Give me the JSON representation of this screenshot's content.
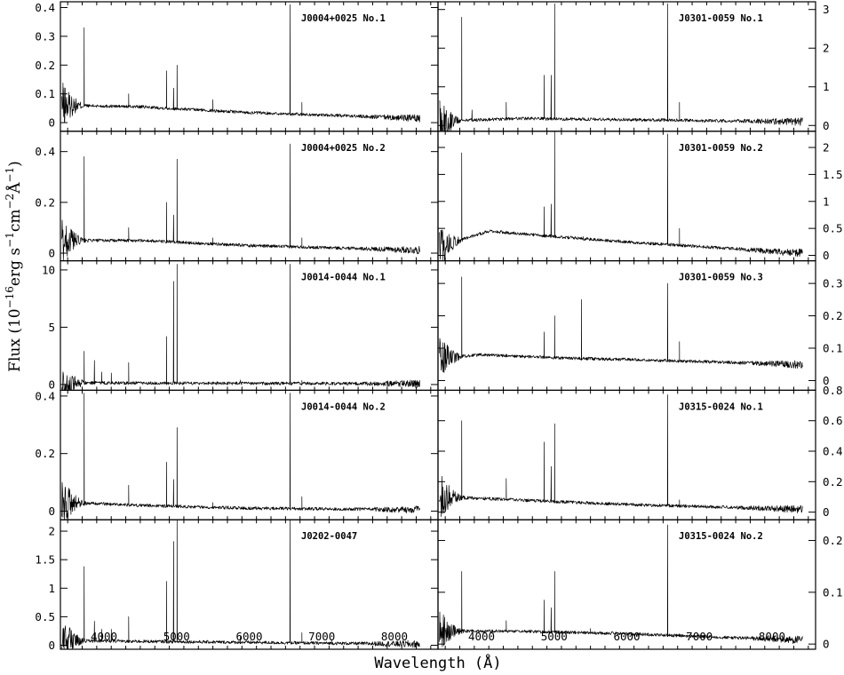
{
  "chart_data": {
    "type": "line",
    "xlabel": "Wavelength (Å)",
    "ylabel": "Flux (10^-16 erg s^-1 cm^-2 Å^-1)",
    "xlim": [
      3400,
      8600
    ],
    "x_ticks": [
      4000,
      5000,
      6000,
      7000,
      8000
    ],
    "layout": "5 rows x 2 columns; left column y-ticks on left, right column y-ticks on right",
    "panels": [
      {
        "label": "J0004+0025 No.1",
        "ylim": [
          -0.03,
          0.42
        ],
        "yticks": [
          0,
          0.1,
          0.2,
          0.3,
          0.4
        ],
        "ytick_labels": [
          "0",
          "0.1",
          "0.2",
          "0.3",
          "0.4"
        ],
        "continuum": [
          [
            3500,
            0.06
          ],
          [
            4500,
            0.055
          ],
          [
            6000,
            0.035
          ],
          [
            8300,
            0.015
          ]
        ],
        "lines": [
          [
            3727,
            0.33
          ],
          [
            4340,
            0.1
          ],
          [
            4861,
            0.18
          ],
          [
            4959,
            0.12
          ],
          [
            5007,
            0.2
          ],
          [
            5500,
            0.08
          ],
          [
            6563,
            0.41
          ],
          [
            6725,
            0.07
          ]
        ]
      },
      {
        "label": "J0004+0025 No.2",
        "ylim": [
          -0.03,
          0.48
        ],
        "yticks": [
          0,
          0.2,
          0.4
        ],
        "ytick_labels": [
          "0",
          "0.2",
          "0.4"
        ],
        "continuum": [
          [
            3500,
            0.05
          ],
          [
            4500,
            0.05
          ],
          [
            6000,
            0.03
          ],
          [
            8300,
            0.012
          ]
        ],
        "lines": [
          [
            3727,
            0.38
          ],
          [
            4340,
            0.1
          ],
          [
            4861,
            0.2
          ],
          [
            4959,
            0.15
          ],
          [
            5007,
            0.37
          ],
          [
            5500,
            0.06
          ],
          [
            6563,
            0.43
          ],
          [
            6725,
            0.06
          ]
        ]
      },
      {
        "label": "J0014-0044 No.1",
        "ylim": [
          -0.5,
          10.8
        ],
        "yticks": [
          0,
          5,
          10
        ],
        "ytick_labels": [
          "0",
          "5",
          "10"
        ],
        "continuum": [
          [
            3500,
            0.15
          ],
          [
            6000,
            0.1
          ],
          [
            8300,
            0.08
          ]
        ],
        "lines": [
          [
            3727,
            2.9
          ],
          [
            3869,
            2.1
          ],
          [
            3968,
            1.1
          ],
          [
            4101,
            1.0
          ],
          [
            4340,
            1.9
          ],
          [
            4861,
            4.2
          ],
          [
            4959,
            9.0
          ],
          [
            5007,
            10.5
          ],
          [
            5876,
            0.4
          ],
          [
            6563,
            10.5
          ],
          [
            6725,
            0.35
          ],
          [
            7135,
            0.2
          ]
        ]
      },
      {
        "label": "J0014-0044 No.2",
        "ylim": [
          -0.03,
          0.42
        ],
        "yticks": [
          0,
          0.2,
          0.4
        ],
        "ytick_labels": [
          "0",
          "0.2",
          "0.4"
        ],
        "continuum": [
          [
            3500,
            0.03
          ],
          [
            4500,
            0.02
          ],
          [
            6000,
            0.01
          ],
          [
            8300,
            0.005
          ]
        ],
        "lines": [
          [
            3727,
            0.41
          ],
          [
            4340,
            0.09
          ],
          [
            4861,
            0.17
          ],
          [
            4959,
            0.11
          ],
          [
            5007,
            0.29
          ],
          [
            5500,
            0.03
          ],
          [
            6563,
            0.41
          ],
          [
            6725,
            0.05
          ]
        ]
      },
      {
        "label": "J0202-0047",
        "ylim": [
          -0.07,
          2.2
        ],
        "yticks": [
          0,
          0.5,
          1,
          1.5,
          2
        ],
        "ytick_labels": [
          "0",
          "0.5",
          "1",
          "1.5",
          "2"
        ],
        "continuum": [
          [
            3500,
            0.08
          ],
          [
            6000,
            0.05
          ],
          [
            8300,
            0.02
          ]
        ],
        "lines": [
          [
            3727,
            1.38
          ],
          [
            3869,
            0.42
          ],
          [
            3968,
            0.28
          ],
          [
            4101,
            0.28
          ],
          [
            4340,
            0.5
          ],
          [
            4861,
            1.12
          ],
          [
            4959,
            1.82
          ],
          [
            5007,
            2.2
          ],
          [
            5876,
            0.15
          ],
          [
            6563,
            2.2
          ],
          [
            6725,
            0.22
          ],
          [
            7135,
            0.1
          ]
        ]
      },
      {
        "label": "J0301-0059 No.1",
        "ylim": [
          -0.15,
          3.2
        ],
        "yticks": [
          0,
          1,
          2,
          3
        ],
        "ytick_labels": [
          "0",
          "1",
          "2",
          "3"
        ],
        "continuum": [
          [
            3500,
            0.12
          ],
          [
            4500,
            0.18
          ],
          [
            6000,
            0.15
          ],
          [
            8300,
            0.1
          ]
        ],
        "lines": [
          [
            3727,
            2.8
          ],
          [
            3869,
            0.4
          ],
          [
            4340,
            0.6
          ],
          [
            4861,
            1.3
          ],
          [
            4959,
            1.3
          ],
          [
            5007,
            3.15
          ],
          [
            6563,
            3.15
          ],
          [
            6725,
            0.6
          ]
        ]
      },
      {
        "label": "J0301-0059 No.2",
        "ylim": [
          -0.1,
          2.3
        ],
        "yticks": [
          0,
          0.5,
          1,
          1.5,
          2
        ],
        "ytick_labels": [
          "0",
          "0.5",
          "1",
          "1.5",
          "2"
        ],
        "continuum": [
          [
            3500,
            0.2
          ],
          [
            4100,
            0.45
          ],
          [
            5000,
            0.35
          ],
          [
            6000,
            0.25
          ],
          [
            8300,
            0.05
          ]
        ],
        "lines": [
          [
            3727,
            1.9
          ],
          [
            4340,
            0.45
          ],
          [
            4861,
            0.9
          ],
          [
            4959,
            0.95
          ],
          [
            5007,
            2.3
          ],
          [
            5400,
            0.35
          ],
          [
            6563,
            2.25
          ],
          [
            6725,
            0.5
          ]
        ]
      },
      {
        "label": "J0301-0059 No.3",
        "ylim": [
          -0.03,
          0.37
        ],
        "yticks": [
          0,
          0.1,
          0.2,
          0.3
        ],
        "ytick_labels": [
          "0",
          "0.1",
          "0.2",
          "0.3"
        ],
        "continuum": [
          [
            3500,
            0.07
          ],
          [
            4000,
            0.08
          ],
          [
            5000,
            0.07
          ],
          [
            6000,
            0.065
          ],
          [
            8300,
            0.05
          ]
        ],
        "lines": [
          [
            3727,
            0.32
          ],
          [
            4861,
            0.15
          ],
          [
            5007,
            0.2
          ],
          [
            5376,
            0.25
          ],
          [
            6563,
            0.3
          ],
          [
            6725,
            0.12
          ]
        ]
      },
      {
        "label": "J0315-0024 No.1",
        "ylim": [
          -0.05,
          0.8
        ],
        "yticks": [
          0,
          0.2,
          0.4,
          0.6,
          0.8
        ],
        "ytick_labels": [
          "0",
          "0.2",
          "0.4",
          "0.6",
          "0.8"
        ],
        "continuum": [
          [
            3500,
            0.1
          ],
          [
            4500,
            0.08
          ],
          [
            6000,
            0.05
          ],
          [
            8300,
            0.02
          ]
        ],
        "lines": [
          [
            3727,
            0.6
          ],
          [
            4340,
            0.22
          ],
          [
            4861,
            0.46
          ],
          [
            4959,
            0.3
          ],
          [
            5007,
            0.58
          ],
          [
            6563,
            0.77
          ],
          [
            6725,
            0.08
          ]
        ]
      },
      {
        "label": "J0315-0024 No.2",
        "ylim": [
          -0.01,
          0.24
        ],
        "yticks": [
          0,
          0.1,
          0.2
        ],
        "ytick_labels": [
          "0",
          "0.1",
          "0.2"
        ],
        "continuum": [
          [
            3500,
            0.025
          ],
          [
            4500,
            0.025
          ],
          [
            6000,
            0.02
          ],
          [
            8300,
            0.008
          ]
        ],
        "lines": [
          [
            3727,
            0.14
          ],
          [
            4340,
            0.045
          ],
          [
            4861,
            0.085
          ],
          [
            4959,
            0.07
          ],
          [
            5007,
            0.14
          ],
          [
            5500,
            0.03
          ],
          [
            6563,
            0.23
          ],
          [
            6725,
            0.02
          ]
        ]
      }
    ]
  }
}
